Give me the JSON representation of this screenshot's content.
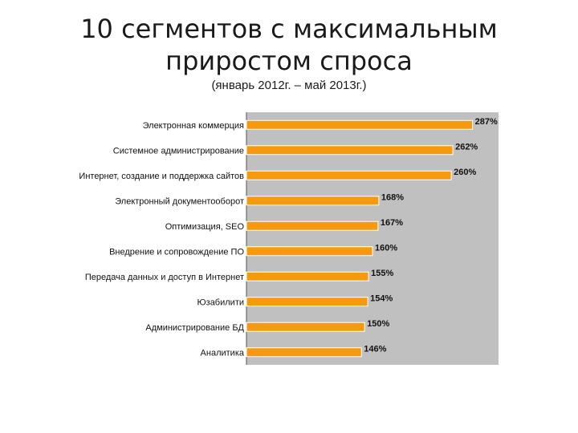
{
  "title": "10 сегментов с максимальным приростом спроса",
  "subtitle": "(январь 2012г. – май 2013г.)",
  "chart_data": {
    "type": "bar",
    "orientation": "horizontal",
    "categories": [
      "Электронная коммерция",
      "Системное администрирование",
      "Интернет, создание и поддержка сайтов",
      "Электронный документооборот",
      "Оптимизация, SEO",
      "Внедрение и сопровождение ПО",
      "Передача данных и доступ в Интернет",
      "Юзабилити",
      "Администрирование БД",
      "Аналитика"
    ],
    "values": [
      287,
      262,
      260,
      168,
      167,
      160,
      155,
      154,
      150,
      146
    ],
    "value_labels": [
      "287%",
      "262%",
      "260%",
      "168%",
      "167%",
      "160%",
      "155%",
      "154%",
      "150%",
      "146%"
    ],
    "xlim": [
      0,
      320
    ],
    "bar_color": "#f59a0e",
    "plot_background": "#c0c0c0",
    "grid": false,
    "legend": "none"
  }
}
